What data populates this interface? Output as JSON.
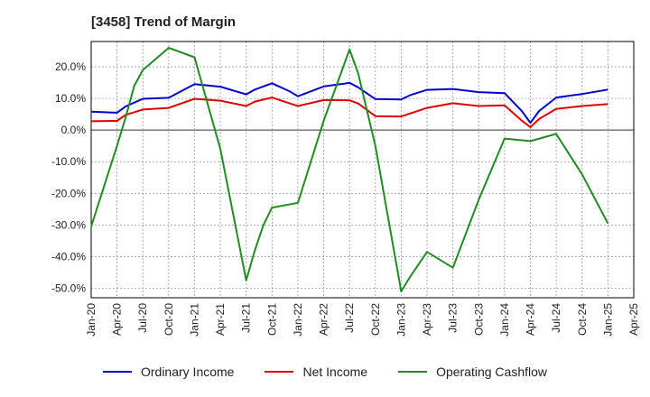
{
  "title": "[3458]  Trend of Margin",
  "chart_data": {
    "type": "line",
    "title": "[3458]  Trend of Margin",
    "xlabel": "",
    "ylabel": "",
    "ylim": [
      -53,
      28
    ],
    "grid": true,
    "legend_position": "bottom",
    "x_tick_labels": [
      "Jan-20",
      "Apr-20",
      "Jul-20",
      "Oct-20",
      "Jan-21",
      "Apr-21",
      "Jul-21",
      "Oct-21",
      "Jan-22",
      "Apr-22",
      "Jul-22",
      "Oct-22",
      "Jan-23",
      "Apr-23",
      "Jul-23",
      "Oct-23",
      "Jan-24",
      "Apr-24",
      "Jul-24",
      "Oct-24",
      "Jan-25",
      "Apr-25"
    ],
    "y_ticks": [
      20,
      10,
      0,
      -10,
      -20,
      -30,
      -40,
      -50
    ],
    "y_tick_labels": [
      "20.0%",
      "10.0%",
      "0.0%",
      "-10.0%",
      "-20.0%",
      "-30.0%",
      "-40.0%",
      "-50.0%"
    ],
    "x_dates": [
      "Jan-20",
      "Apr-20",
      "Jul-20",
      "Oct-20",
      "Jan-21",
      "Apr-21",
      "Jul-21",
      "Oct-21",
      "Jan-22",
      "Apr-22",
      "Jul-22",
      "Oct-22",
      "Jan-23",
      "Apr-23",
      "Jul-23",
      "Oct-23",
      "Jan-24",
      "Apr-24",
      "Jul-24",
      "Oct-24",
      "Jan-25"
    ],
    "series": [
      {
        "name": "Ordinary Income",
        "color": "#0000cc",
        "x": [
          "Jan-20",
          "Apr-20",
          "May-20",
          "Jul-20",
          "Oct-20",
          "Jan-21",
          "Apr-21",
          "Jul-21",
          "Aug-21",
          "Oct-21",
          "Dec-21",
          "Jan-22",
          "Apr-22",
          "Jul-22",
          "Aug-22",
          "Oct-22",
          "Jan-23",
          "Feb-23",
          "Apr-23",
          "Jul-23",
          "Oct-23",
          "Jan-24",
          "Mar-24",
          "Apr-24",
          "May-24",
          "Jul-24",
          "Oct-24",
          "Jan-25"
        ],
        "values": [
          5.8,
          5.5,
          7.5,
          9.9,
          10.2,
          14.5,
          13.7,
          11.3,
          12.8,
          14.8,
          12.3,
          10.7,
          13.8,
          14.9,
          13.5,
          9.8,
          9.7,
          11.0,
          12.7,
          13.0,
          12.0,
          11.7,
          6.0,
          2.3,
          6.0,
          10.3,
          11.4,
          12.8
        ]
      },
      {
        "name": "Net Income",
        "color": "#dd0000",
        "x": [
          "Jan-20",
          "Apr-20",
          "May-20",
          "Jul-20",
          "Oct-20",
          "Jan-21",
          "Apr-21",
          "Jul-21",
          "Aug-21",
          "Oct-21",
          "Dec-21",
          "Jan-22",
          "Apr-22",
          "Jul-22",
          "Aug-22",
          "Oct-22",
          "Jan-23",
          "Apr-23",
          "Jul-23",
          "Oct-23",
          "Jan-24",
          "Mar-24",
          "Apr-24",
          "May-24",
          "Jul-24",
          "Oct-24",
          "Jan-25"
        ],
        "values": [
          2.8,
          2.9,
          4.8,
          6.5,
          7.0,
          9.9,
          9.3,
          7.6,
          9.0,
          10.3,
          8.5,
          7.6,
          9.5,
          9.4,
          8.4,
          4.4,
          4.3,
          7.0,
          8.5,
          7.6,
          7.8,
          3.0,
          0.9,
          3.5,
          6.7,
          7.6,
          8.2
        ]
      },
      {
        "name": "Operating Cashflow",
        "color": "#228b22",
        "x": [
          "Jan-20",
          "Apr-20",
          "May-20",
          "Jun-20",
          "Jul-20",
          "Oct-20",
          "Jan-21",
          "Apr-21",
          "Jul-21",
          "Aug-21",
          "Sep-21",
          "Oct-21",
          "Jan-22",
          "Apr-22",
          "Jul-22",
          "Aug-22",
          "Oct-22",
          "Jan-23",
          "Feb-23",
          "Apr-23",
          "Jul-23",
          "Oct-23",
          "Jan-24",
          "Apr-24",
          "Jul-24",
          "Oct-24",
          "Jan-25"
        ],
        "values": [
          -30.5,
          -5.0,
          4.0,
          14.0,
          19.0,
          26.0,
          23.0,
          -6.0,
          -47.5,
          -38.0,
          -30.0,
          -24.5,
          -23.0,
          3.0,
          25.5,
          18.0,
          -5.0,
          -51.0,
          -46.5,
          -38.5,
          -43.5,
          -22.0,
          -2.7,
          -3.5,
          -1.2,
          -14.0,
          -29.5
        ]
      }
    ]
  }
}
